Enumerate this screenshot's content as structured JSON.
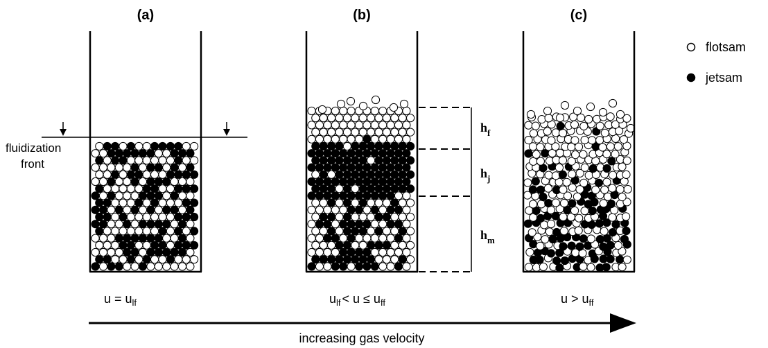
{
  "panels": [
    {
      "label": "(a)",
      "condition": {
        "main": "u = u",
        "sub": "lf",
        "rest": ""
      }
    },
    {
      "label": "(b)",
      "condition": {
        "main": "u",
        "sub": "lf",
        "rest": "< u ≤ u",
        "sub2": "ff"
      }
    },
    {
      "label": "(c)",
      "condition": {
        "main": "u > u",
        "sub": "ff",
        "rest": ""
      }
    }
  ],
  "annotations": {
    "fluidization_front_line1": "fluidization",
    "fluidization_front_line2": "front"
  },
  "zones": {
    "hf": {
      "base": "h",
      "sub": "f"
    },
    "hj": {
      "base": "h",
      "sub": "j"
    },
    "hm": {
      "base": "h",
      "sub": "m"
    }
  },
  "legend": {
    "flotsam": "flotsam",
    "jetsam": "jetsam"
  },
  "arrow_label": "increasing gas velocity",
  "colors": {
    "flotsam_fill": "#ffffff",
    "jetsam_fill": "#000000",
    "stroke": "#000000"
  }
}
